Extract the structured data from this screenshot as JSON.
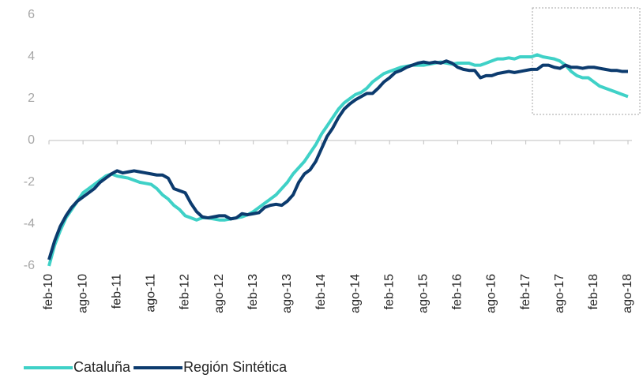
{
  "chart_data": {
    "type": "line",
    "categories": [
      "feb-10",
      null,
      null,
      null,
      null,
      null,
      "ago-10",
      null,
      null,
      null,
      null,
      null,
      "feb-11",
      null,
      null,
      null,
      null,
      null,
      "ago-11",
      null,
      null,
      null,
      null,
      null,
      "feb-12",
      null,
      null,
      null,
      null,
      null,
      "ago-12",
      null,
      null,
      null,
      null,
      null,
      "feb-13",
      null,
      null,
      null,
      null,
      null,
      "ago-13",
      null,
      null,
      null,
      null,
      null,
      "feb-14",
      null,
      null,
      null,
      null,
      null,
      "ago-14",
      null,
      null,
      null,
      null,
      null,
      "feb-15",
      null,
      null,
      null,
      null,
      null,
      "ago-15",
      null,
      null,
      null,
      null,
      null,
      "feb-16",
      null,
      null,
      null,
      null,
      null,
      "ago-16",
      null,
      null,
      null,
      null,
      null,
      "feb-17",
      null,
      null,
      null,
      null,
      null,
      "ago-17",
      null,
      null,
      null,
      null,
      null,
      "feb-18",
      null,
      null,
      null,
      null,
      null,
      "ago-18"
    ],
    "series": [
      {
        "name": "Cataluña",
        "color": "#3fd1c7",
        "values": [
          -6,
          -5,
          -4.3,
          -3.7,
          -3.3,
          -2.9,
          -2.5,
          -2.3,
          -2.1,
          -1.9,
          -1.7,
          -1.6,
          -1.7,
          -1.75,
          -1.8,
          -1.9,
          -2.0,
          -2.05,
          -2.1,
          -2.3,
          -2.6,
          -2.8,
          -3.1,
          -3.3,
          -3.6,
          -3.7,
          -3.8,
          -3.7,
          -3.7,
          -3.75,
          -3.8,
          -3.8,
          -3.75,
          -3.7,
          -3.65,
          -3.55,
          -3.4,
          -3.2,
          -3.0,
          -2.8,
          -2.6,
          -2.3,
          -2.0,
          -1.6,
          -1.3,
          -1.0,
          -0.6,
          -0.2,
          0.3,
          0.7,
          1.1,
          1.5,
          1.8,
          2.0,
          2.2,
          2.3,
          2.5,
          2.8,
          3.0,
          3.2,
          3.3,
          3.4,
          3.5,
          3.55,
          3.6,
          3.6,
          3.6,
          3.65,
          3.7,
          3.75,
          3.7,
          3.65,
          3.7,
          3.7,
          3.7,
          3.6,
          3.6,
          3.7,
          3.8,
          3.9,
          3.9,
          3.95,
          3.9,
          4.0,
          4.0,
          4.0,
          4.1,
          4.0,
          3.95,
          3.9,
          3.8,
          3.6,
          3.3,
          3.1,
          3.0,
          3.0,
          2.8,
          2.6,
          2.5,
          2.4,
          2.3,
          2.2,
          2.1
        ]
      },
      {
        "name": "Región Sintética",
        "color": "#0c3b6e",
        "values": [
          -5.7,
          -4.8,
          -4.1,
          -3.6,
          -3.2,
          -2.9,
          -2.7,
          -2.5,
          -2.3,
          -2.0,
          -1.8,
          -1.6,
          -1.45,
          -1.55,
          -1.5,
          -1.45,
          -1.5,
          -1.55,
          -1.6,
          -1.65,
          -1.65,
          -1.8,
          -2.3,
          -2.4,
          -2.5,
          -3.0,
          -3.4,
          -3.65,
          -3.7,
          -3.65,
          -3.6,
          -3.6,
          -3.75,
          -3.7,
          -3.5,
          -3.55,
          -3.5,
          -3.45,
          -3.2,
          -3.1,
          -3.05,
          -3.1,
          -2.9,
          -2.6,
          -2.0,
          -1.6,
          -1.4,
          -1.0,
          -0.4,
          0.2,
          0.6,
          1.1,
          1.5,
          1.75,
          1.95,
          2.1,
          2.25,
          2.25,
          2.5,
          2.8,
          3.0,
          3.25,
          3.35,
          3.5,
          3.6,
          3.7,
          3.75,
          3.7,
          3.75,
          3.7,
          3.8,
          3.7,
          3.5,
          3.4,
          3.35,
          3.35,
          3.0,
          3.1,
          3.1,
          3.2,
          3.25,
          3.3,
          3.25,
          3.3,
          3.35,
          3.4,
          3.4,
          3.6,
          3.6,
          3.5,
          3.45,
          3.6,
          3.5,
          3.5,
          3.45,
          3.5,
          3.5,
          3.45,
          3.4,
          3.35,
          3.35,
          3.3,
          3.3
        ]
      }
    ],
    "ylim": [
      -6,
      6
    ],
    "yticks": [
      -6,
      -4,
      -2,
      0,
      2,
      4,
      6
    ],
    "grid": false,
    "legend": "bottom-left"
  }
}
